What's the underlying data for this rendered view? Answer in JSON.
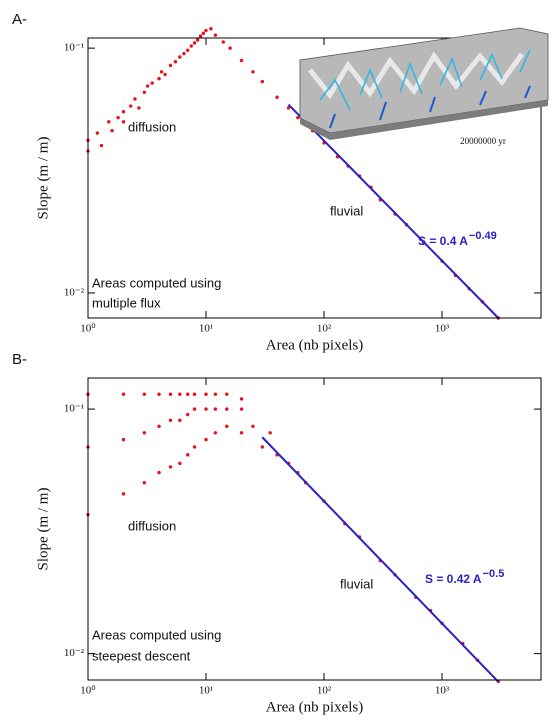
{
  "chart_data": [
    {
      "type": "scatter",
      "panel": "A-",
      "xlabel": "Area (nb pixels)",
      "ylabel": "Slope (m / m)",
      "xscale": "log",
      "yscale": "log",
      "xlim": [
        1,
        6900
      ],
      "ylim": [
        0.0079,
        0.11
      ],
      "xticks": [
        {
          "value": 1,
          "label": "10⁰"
        },
        {
          "value": 10,
          "label": "10¹"
        },
        {
          "value": 100,
          "label": "10²"
        },
        {
          "value": 1000,
          "label": "10³"
        }
      ],
      "yticks": [
        {
          "value": 0.01,
          "label": "10⁻²"
        },
        {
          "value": 0.1,
          "label": "10⁻¹"
        }
      ],
      "annotations": [
        "diffusion",
        "fluvial",
        "Areas computed using",
        "multiple flux"
      ],
      "inset_caption": "20000000 yr",
      "series": [
        {
          "color": "#e8101a",
          "x": [
            1,
            1,
            1.2,
            1.3,
            1.5,
            1.6,
            1.8,
            2,
            2,
            2.3,
            2.5,
            2.7,
            3,
            3.2,
            3.5,
            4,
            4.2,
            4.5,
            5,
            5.5,
            6,
            6.5,
            7,
            7.5,
            8,
            8.5,
            9,
            9.5,
            10,
            11,
            12,
            14,
            16,
            20,
            25,
            30,
            40,
            50,
            60,
            80,
            100,
            130,
            160,
            200,
            250,
            300,
            400,
            500,
            700,
            1000,
            1300,
            1700,
            2200,
            3000
          ],
          "values": [
            0.038,
            0.042,
            0.045,
            0.04,
            0.05,
            0.046,
            0.052,
            0.055,
            0.05,
            0.058,
            0.062,
            0.057,
            0.066,
            0.07,
            0.072,
            0.075,
            0.08,
            0.078,
            0.085,
            0.088,
            0.092,
            0.095,
            0.098,
            0.102,
            0.105,
            0.108,
            0.112,
            0.115,
            0.118,
            0.12,
            0.113,
            0.106,
            0.1,
            0.089,
            0.08,
            0.073,
            0.063,
            0.057,
            0.052,
            0.046,
            0.041,
            0.036,
            0.033,
            0.03,
            0.027,
            0.024,
            0.021,
            0.019,
            0.016,
            0.0135,
            0.0118,
            0.0104,
            0.0092,
            0.0079
          ]
        }
      ],
      "fit": {
        "color": "#2a22c8",
        "x": [
          50,
          3000
        ],
        "values": [
          0.0588,
          0.0079
        ]
      },
      "fit_label": "S = 0.4 A",
      "fit_exponent": "−0.49"
    },
    {
      "type": "scatter",
      "panel": "B-",
      "xlabel": "Area (nb pixels)",
      "ylabel": "Slope (m / m)",
      "xscale": "log",
      "yscale": "log",
      "xlim": [
        1,
        6900
      ],
      "ylim": [
        0.0078,
        0.134
      ],
      "xticks": [
        {
          "value": 1,
          "label": "10⁰"
        },
        {
          "value": 10,
          "label": "10¹"
        },
        {
          "value": 100,
          "label": "10²"
        },
        {
          "value": 1000,
          "label": "10³"
        }
      ],
      "yticks": [
        {
          "value": 0.01,
          "label": "10⁻²"
        },
        {
          "value": 0.1,
          "label": "10⁻¹"
        }
      ],
      "annotations": [
        "diffusion",
        "fluvial",
        "Areas computed using",
        "steepest descent"
      ],
      "series": [
        {
          "color": "#e8101a",
          "x": [
            1,
            1,
            1,
            2,
            2,
            2,
            3,
            3,
            3,
            4,
            4,
            4,
            5,
            5,
            5,
            6,
            6,
            6,
            7,
            7,
            7,
            8,
            8,
            8,
            10,
            10,
            10,
            12,
            12,
            12,
            15,
            15,
            15,
            20,
            20,
            20,
            25,
            30,
            35,
            40,
            50,
            60,
            70,
            100,
            150,
            200,
            300,
            400,
            600,
            800,
            1000,
            1500,
            2000,
            3000
          ],
          "values": [
            0.037,
            0.07,
            0.115,
            0.045,
            0.075,
            0.115,
            0.05,
            0.08,
            0.115,
            0.055,
            0.085,
            0.115,
            0.058,
            0.09,
            0.115,
            0.06,
            0.09,
            0.115,
            0.065,
            0.095,
            0.115,
            0.07,
            0.1,
            0.115,
            0.075,
            0.1,
            0.115,
            0.08,
            0.1,
            0.115,
            0.085,
            0.1,
            0.115,
            0.08,
            0.1,
            0.11,
            0.085,
            0.07,
            0.08,
            0.065,
            0.06,
            0.055,
            0.05,
            0.042,
            0.034,
            0.03,
            0.024,
            0.021,
            0.017,
            0.015,
            0.0133,
            0.011,
            0.0094,
            0.0077
          ]
        }
      ],
      "fit": {
        "color": "#2a22c8",
        "x": [
          30,
          3000
        ],
        "values": [
          0.0767,
          0.00767
        ]
      },
      "fit_label": "S = 0.42 A",
      "fit_exponent": "−0.5"
    }
  ]
}
